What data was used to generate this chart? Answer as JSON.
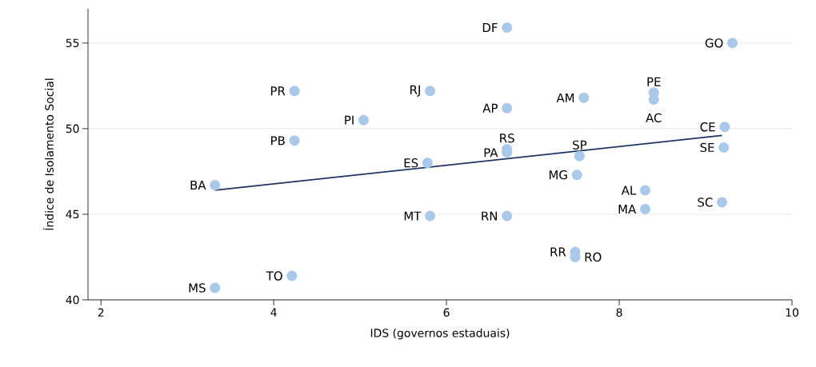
{
  "chart_data": {
    "type": "scatter",
    "xlabel": "IDS (governos estaduais)",
    "ylabel": "Índice de Isolamento Social",
    "xlim": [
      1.85,
      10
    ],
    "ylim": [
      40,
      57
    ],
    "xticks": [
      2,
      4,
      6,
      8,
      10
    ],
    "yticks": [
      40,
      45,
      50,
      55
    ],
    "grid": "y",
    "series": [
      {
        "marker": "circle",
        "color": "#a9c8ea",
        "x": [
          4.24,
          5.04,
          4.24,
          3.32,
          4.21,
          3.32,
          6.7,
          9.31,
          5.81,
          6.7,
          7.59,
          8.4,
          8.4,
          9.22,
          9.21,
          6.7,
          6.7,
          7.54,
          5.78,
          7.51,
          8.3,
          8.3,
          9.19,
          5.81,
          6.7,
          7.49,
          7.49
        ],
        "values": [
          52.2,
          50.5,
          49.3,
          46.7,
          41.4,
          40.7,
          55.9,
          55.0,
          52.2,
          51.2,
          51.8,
          52.1,
          51.7,
          50.1,
          48.9,
          48.8,
          48.6,
          48.4,
          48.0,
          47.3,
          46.4,
          45.3,
          45.7,
          44.9,
          44.9,
          42.8,
          42.5
        ]
      },
      {
        "type": "line",
        "color": "#1f3464",
        "x": [
          3.32,
          9.19
        ],
        "values": [
          46.4,
          49.6
        ]
      }
    ],
    "annotations": [
      {
        "text": "PR",
        "x": 4.24,
        "y": 52.2
      },
      {
        "text": "PI",
        "x": 5.04,
        "y": 50.5
      },
      {
        "text": "PB",
        "x": 4.24,
        "y": 49.3
      },
      {
        "text": "BA",
        "x": 3.32,
        "y": 46.7
      },
      {
        "text": "TO",
        "x": 4.21,
        "y": 41.4
      },
      {
        "text": "MS",
        "x": 3.32,
        "y": 40.7
      },
      {
        "text": "DF",
        "x": 6.7,
        "y": 55.9
      },
      {
        "text": "GO",
        "x": 9.31,
        "y": 55.0
      },
      {
        "text": "RJ",
        "x": 5.81,
        "y": 52.2
      },
      {
        "text": "AP",
        "x": 6.7,
        "y": 51.2
      },
      {
        "text": "AM",
        "x": 7.59,
        "y": 51.8
      },
      {
        "text": "PE",
        "x": 8.4,
        "y": 52.1
      },
      {
        "text": "AC",
        "x": 8.4,
        "y": 51.7
      },
      {
        "text": "CE",
        "x": 9.22,
        "y": 50.1
      },
      {
        "text": "SE",
        "x": 9.21,
        "y": 48.9
      },
      {
        "text": "RS",
        "x": 6.7,
        "y": 48.8
      },
      {
        "text": "PA",
        "x": 6.7,
        "y": 48.6
      },
      {
        "text": "SP",
        "x": 7.54,
        "y": 48.4
      },
      {
        "text": "ES",
        "x": 5.78,
        "y": 48.0
      },
      {
        "text": "MG",
        "x": 7.51,
        "y": 47.3
      },
      {
        "text": "AL",
        "x": 8.3,
        "y": 46.4
      },
      {
        "text": "MA",
        "x": 8.3,
        "y": 45.3
      },
      {
        "text": "SC",
        "x": 9.19,
        "y": 45.7
      },
      {
        "text": "MT",
        "x": 5.81,
        "y": 44.9
      },
      {
        "text": "RN",
        "x": 6.7,
        "y": 44.9
      },
      {
        "text": "RR",
        "x": 7.49,
        "y": 42.8
      },
      {
        "text": "RO",
        "x": 7.49,
        "y": 42.5
      }
    ]
  }
}
